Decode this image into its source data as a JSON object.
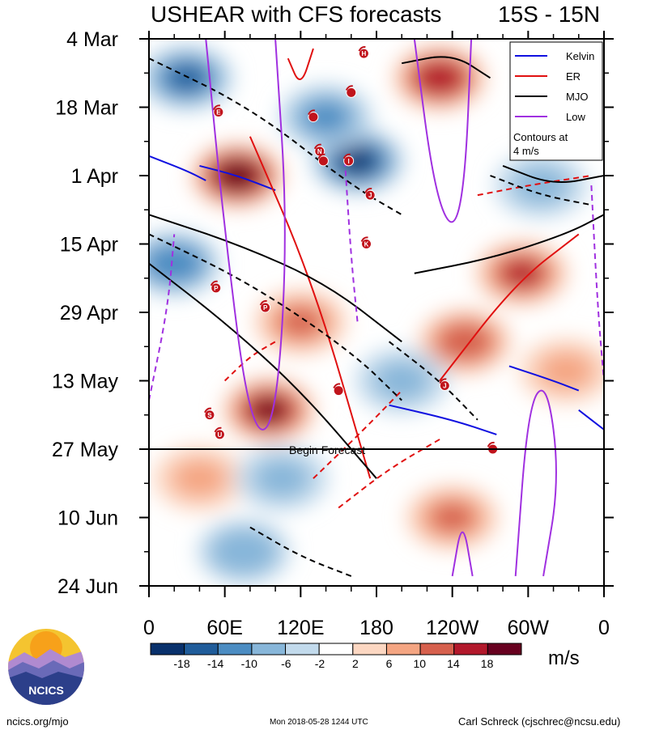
{
  "chart_data": {
    "type": "heatmap",
    "title": "USHEAR with CFS forecasts",
    "title_right": "15S - 15N",
    "x_tick_labels": [
      "0",
      "60E",
      "120E",
      "180",
      "120W",
      "60W",
      "0"
    ],
    "x_ticks_deg": [
      0,
      60,
      120,
      180,
      240,
      300,
      360
    ],
    "y_tick_labels": [
      "4 Mar",
      "18 Mar",
      "1 Apr",
      "15 Apr",
      "29 Apr",
      "13 May",
      "27 May",
      "10 Jun",
      "24 Jun"
    ],
    "y_range_dates": [
      "2018-03-04",
      "2018-06-24"
    ],
    "forecast_line_label": "Begin Forecast",
    "forecast_start": "2018-05-27",
    "colorbar": {
      "levels": [
        -18,
        -14,
        -10,
        -6,
        -2,
        2,
        6,
        10,
        14,
        18
      ],
      "tick_labels": [
        "-18",
        "-14",
        "-10",
        "-6",
        "-2",
        "2",
        "6",
        "10",
        "14",
        "18"
      ],
      "colors": [
        "#08306b",
        "#1f5c9a",
        "#4b8cc2",
        "#87b6d9",
        "#c2daec",
        "#ffffff",
        "#fcd7c2",
        "#f4a582",
        "#d6604d",
        "#b2182b",
        "#67001f"
      ],
      "units": "m/s"
    },
    "legend": {
      "placement": "top-right",
      "entries": [
        {
          "name": "Kelvin",
          "color": "#1010e0"
        },
        {
          "name": "ER",
          "color": "#e01010"
        },
        {
          "name": "MJO",
          "color": "#000000"
        },
        {
          "name": "Low",
          "color": "#a030e0"
        }
      ],
      "note_line1": "Contours at",
      "note_line2": "4 m/s"
    },
    "anomaly_blobs": [
      {
        "lon": 70,
        "day": 28,
        "val": 20
      },
      {
        "lon": 95,
        "day": 76,
        "val": 19
      },
      {
        "lon": 230,
        "day": 8,
        "val": 16
      },
      {
        "lon": 250,
        "day": 62,
        "val": 12
      },
      {
        "lon": 295,
        "day": 48,
        "val": 14
      },
      {
        "lon": 240,
        "day": 98,
        "val": 9
      },
      {
        "lon": 120,
        "day": 58,
        "val": 11
      },
      {
        "lon": 330,
        "day": 68,
        "val": 7
      },
      {
        "lon": 40,
        "day": 90,
        "val": 6
      },
      {
        "lon": 165,
        "day": 25,
        "val": -17
      },
      {
        "lon": 140,
        "day": 16,
        "val": -11
      },
      {
        "lon": 30,
        "day": 8,
        "val": -14
      },
      {
        "lon": 20,
        "day": 46,
        "val": -12
      },
      {
        "lon": 75,
        "day": 105,
        "val": -8
      },
      {
        "lon": 200,
        "day": 70,
        "val": -7
      },
      {
        "lon": 310,
        "day": 30,
        "val": -6
      },
      {
        "lon": 105,
        "day": 90,
        "val": -5
      }
    ],
    "contours": [
      {
        "series": "Kelvin",
        "dashed": false,
        "points": [
          [
            0,
            24
          ],
          [
            30,
            27
          ],
          [
            45,
            29
          ]
        ]
      },
      {
        "series": "Kelvin",
        "dashed": false,
        "points": [
          [
            40,
            26
          ],
          [
            70,
            28
          ],
          [
            100,
            31
          ]
        ]
      },
      {
        "series": "Kelvin",
        "dashed": false,
        "points": [
          [
            190,
            75
          ],
          [
            240,
            78
          ],
          [
            275,
            81
          ]
        ]
      },
      {
        "series": "Kelvin",
        "dashed": false,
        "points": [
          [
            285,
            67
          ],
          [
            320,
            70
          ],
          [
            340,
            72
          ]
        ]
      },
      {
        "series": "Kelvin",
        "dashed": false,
        "points": [
          [
            340,
            76
          ],
          [
            360,
            80
          ]
        ]
      },
      {
        "series": "ER",
        "dashed": false,
        "points": [
          [
            80,
            20
          ],
          [
            130,
            50
          ],
          [
            175,
            90
          ]
        ]
      },
      {
        "series": "ER",
        "dashed": false,
        "points": [
          [
            230,
            70
          ],
          [
            290,
            50
          ],
          [
            340,
            40
          ]
        ]
      },
      {
        "series": "ER",
        "dashed": false,
        "points": [
          [
            110,
            4
          ],
          [
            120,
            10
          ],
          [
            130,
            2
          ]
        ]
      },
      {
        "series": "ER",
        "dashed": true,
        "points": [
          [
            130,
            90
          ],
          [
            170,
            80
          ],
          [
            200,
            72
          ]
        ]
      },
      {
        "series": "ER",
        "dashed": true,
        "points": [
          [
            60,
            70
          ],
          [
            80,
            65
          ],
          [
            100,
            62
          ]
        ]
      },
      {
        "series": "ER",
        "dashed": true,
        "points": [
          [
            150,
            96
          ],
          [
            190,
            88
          ],
          [
            230,
            82
          ]
        ]
      },
      {
        "series": "ER",
        "dashed": true,
        "points": [
          [
            260,
            32
          ],
          [
            300,
            30
          ],
          [
            350,
            28
          ]
        ]
      },
      {
        "series": "MJO",
        "dashed": false,
        "points": [
          [
            0,
            46
          ],
          [
            60,
            58
          ],
          [
            120,
            72
          ],
          [
            180,
            90
          ]
        ]
      },
      {
        "series": "MJO",
        "dashed": false,
        "points": [
          [
            0,
            36
          ],
          [
            70,
            42
          ],
          [
            140,
            50
          ],
          [
            200,
            62
          ]
        ]
      },
      {
        "series": "MJO",
        "dashed": false,
        "points": [
          [
            210,
            48
          ],
          [
            270,
            45
          ],
          [
            330,
            40
          ],
          [
            360,
            36
          ]
        ]
      },
      {
        "series": "MJO",
        "dashed": false,
        "points": [
          [
            200,
            5
          ],
          [
            240,
            3
          ],
          [
            270,
            8
          ]
        ]
      },
      {
        "series": "MJO",
        "dashed": false,
        "points": [
          [
            280,
            26
          ],
          [
            320,
            30
          ],
          [
            360,
            28
          ]
        ]
      },
      {
        "series": "MJO",
        "dashed": true,
        "points": [
          [
            0,
            4
          ],
          [
            80,
            14
          ],
          [
            160,
            30
          ],
          [
            200,
            36
          ]
        ]
      },
      {
        "series": "MJO",
        "dashed": true,
        "points": [
          [
            0,
            40
          ],
          [
            80,
            50
          ],
          [
            160,
            64
          ],
          [
            200,
            74
          ]
        ]
      },
      {
        "series": "MJO",
        "dashed": true,
        "points": [
          [
            190,
            62
          ],
          [
            230,
            70
          ],
          [
            260,
            78
          ]
        ]
      },
      {
        "series": "MJO",
        "dashed": true,
        "points": [
          [
            80,
            100
          ],
          [
            120,
            106
          ],
          [
            160,
            110
          ]
        ]
      },
      {
        "series": "MJO",
        "dashed": true,
        "points": [
          [
            270,
            28
          ],
          [
            310,
            32
          ],
          [
            350,
            34
          ]
        ]
      },
      {
        "series": "Low",
        "dashed": false,
        "points": [
          [
            45,
            0
          ],
          [
            60,
            40
          ],
          [
            80,
            80
          ],
          [
            100,
            80
          ],
          [
            110,
            40
          ],
          [
            100,
            0
          ]
        ]
      },
      {
        "series": "Low",
        "dashed": false,
        "points": [
          [
            210,
            0
          ],
          [
            225,
            30
          ],
          [
            240,
            40
          ],
          [
            250,
            30
          ],
          [
            255,
            0
          ]
        ]
      },
      {
        "series": "Low",
        "dashed": false,
        "points": [
          [
            290,
            110
          ],
          [
            300,
            75
          ],
          [
            315,
            70
          ],
          [
            325,
            90
          ],
          [
            312,
            110
          ]
        ]
      },
      {
        "series": "Low",
        "dashed": false,
        "points": [
          [
            240,
            110
          ],
          [
            248,
            98
          ],
          [
            256,
            110
          ]
        ]
      },
      {
        "series": "Low",
        "dashed": true,
        "points": [
          [
            155,
            25
          ],
          [
            160,
            45
          ],
          [
            165,
            58
          ]
        ]
      },
      {
        "series": "Low",
        "dashed": true,
        "points": [
          [
            0,
            74
          ],
          [
            15,
            55
          ],
          [
            20,
            40
          ]
        ]
      },
      {
        "series": "Low",
        "dashed": true,
        "points": [
          [
            350,
            30
          ],
          [
            355,
            55
          ],
          [
            360,
            70
          ]
        ]
      }
    ],
    "storms": [
      {
        "letter": "H",
        "lon": 170,
        "day": 3
      },
      {
        "letter": "",
        "lon": 160,
        "day": 11
      },
      {
        "letter": "E",
        "lon": 55,
        "day": 15
      },
      {
        "letter": "",
        "lon": 130,
        "day": 16
      },
      {
        "letter": "N",
        "lon": 135,
        "day": 23
      },
      {
        "letter": "",
        "lon": 138,
        "day": 25
      },
      {
        "letter": "I",
        "lon": 158,
        "day": 25
      },
      {
        "letter": "J",
        "lon": 175,
        "day": 32
      },
      {
        "letter": "K",
        "lon": 172,
        "day": 42
      },
      {
        "letter": "P",
        "lon": 53,
        "day": 51
      },
      {
        "letter": "P",
        "lon": 92,
        "day": 55
      },
      {
        "letter": "",
        "lon": 150,
        "day": 72
      },
      {
        "letter": "J",
        "lon": 234,
        "day": 71
      },
      {
        "letter": "S",
        "lon": 48,
        "day": 77
      },
      {
        "letter": "U",
        "lon": 56,
        "day": 81
      },
      {
        "letter": "",
        "lon": 272,
        "day": 84
      }
    ]
  },
  "footer": {
    "site": "ncics.org/mjo",
    "timestamp": "Mon 2018-05-28 1244 UTC",
    "author": "Carl Schreck (cjschrec@ncsu.edu)",
    "logo_text": "NCICS"
  }
}
